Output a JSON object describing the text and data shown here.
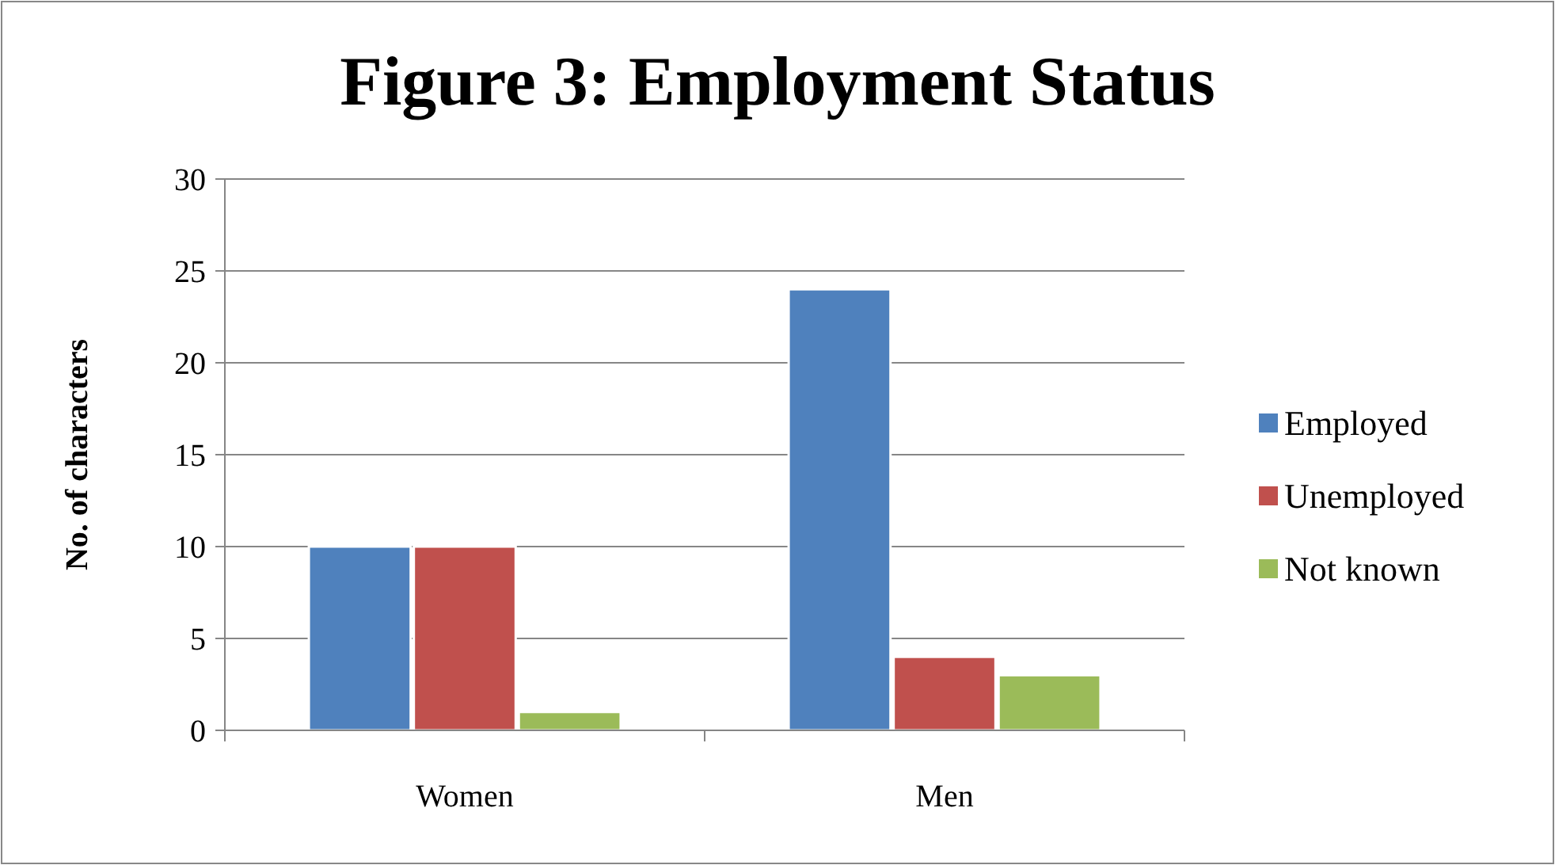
{
  "chart_data": {
    "type": "bar",
    "title": "Figure 3: Employment Status",
    "ylabel": "No. of characters",
    "categories": [
      "Women",
      "Men"
    ],
    "series": [
      {
        "name": "Employed",
        "color": "#4f81bd",
        "values": [
          10,
          24
        ]
      },
      {
        "name": "Unemployed",
        "color": "#c0504d",
        "values": [
          10,
          4
        ]
      },
      {
        "name": "Not known",
        "color": "#9bbb59",
        "values": [
          1,
          3
        ]
      }
    ],
    "ylim": [
      0,
      30
    ],
    "yticks": [
      0,
      5,
      10,
      15,
      20,
      25,
      30
    ],
    "grid": "y",
    "legend": "right"
  }
}
